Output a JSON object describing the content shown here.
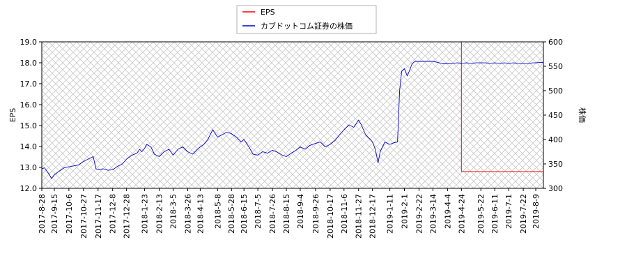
{
  "chart_data": {
    "type": "line",
    "legend": {
      "placement": "top-center",
      "entries": [
        "EPS",
        "カブドットコム証券の株価"
      ]
    },
    "grid": true,
    "x_ticks": [
      "2017-8-28",
      "2017-9-15",
      "2017-10-6",
      "2017-10-27",
      "2017-11-17",
      "2017-12-8",
      "2017-12-28",
      "2018-1-23",
      "2018-2-13",
      "2018-3-5",
      "2018-3-26",
      "2018-4-13",
      "2018-5-8",
      "2018-5-28",
      "2018-6-15",
      "2018-7-5",
      "2018-7-26",
      "2018-8-15",
      "2018-9-4",
      "2018-9-26",
      "2018-10-17",
      "2018-11-6",
      "2018-11-27",
      "2018-12-17",
      "2019-1-11",
      "2019-2-1",
      "2019-2-22",
      "2019-3-14",
      "2019-4-4",
      "2019-4-24",
      "2019-5-22",
      "2019-6-11",
      "2019-7-1",
      "2019-7-22",
      "2019-8-9"
    ],
    "x_range": [
      "2017-8-28",
      "2019-8-20"
    ],
    "y_left": {
      "label": "EPS",
      "range": [
        12.0,
        19.0
      ],
      "ticks": [
        "12.0",
        "13.0",
        "14.0",
        "15.0",
        "16.0",
        "17.0",
        "18.0",
        "19.0"
      ]
    },
    "y_right": {
      "label": "株価",
      "range": [
        300,
        600
      ],
      "ticks": [
        "300",
        "350",
        "400",
        "450",
        "500",
        "550",
        "600"
      ]
    },
    "series": [
      {
        "name": "EPS",
        "color": "#ff0000",
        "axis": "left",
        "points": [
          [
            "2018-4-24",
            19.0
          ],
          [
            "2019-4-24",
            19.0
          ],
          [
            "2019-4-24",
            12.8
          ],
          [
            "2019-8-20",
            12.8
          ]
        ]
      },
      {
        "name": "カブドットコム証券の株価",
        "color": "#0000cc",
        "axis": "right",
        "points": [
          [
            "2017-8-28",
            340
          ],
          [
            "2017-9-1",
            342
          ],
          [
            "2017-9-7",
            330
          ],
          [
            "2017-9-11",
            320
          ],
          [
            "2017-9-15",
            328
          ],
          [
            "2017-9-22",
            335
          ],
          [
            "2017-9-29",
            342
          ],
          [
            "2017-10-6",
            344
          ],
          [
            "2017-10-13",
            346
          ],
          [
            "2017-10-20",
            348
          ],
          [
            "2017-10-27",
            355
          ],
          [
            "2017-11-3",
            360
          ],
          [
            "2017-11-10",
            365
          ],
          [
            "2017-11-14",
            340
          ],
          [
            "2017-11-17",
            338
          ],
          [
            "2017-11-24",
            340
          ],
          [
            "2017-12-1",
            337
          ],
          [
            "2017-12-8",
            338
          ],
          [
            "2017-12-15",
            345
          ],
          [
            "2017-12-22",
            350
          ],
          [
            "2017-12-28",
            360
          ],
          [
            "2018-1-5",
            368
          ],
          [
            "2018-1-12",
            372
          ],
          [
            "2018-1-16",
            380
          ],
          [
            "2018-1-19",
            375
          ],
          [
            "2018-1-23",
            382
          ],
          [
            "2018-1-26",
            390
          ],
          [
            "2018-2-1",
            385
          ],
          [
            "2018-2-6",
            370
          ],
          [
            "2018-2-13",
            365
          ],
          [
            "2018-2-20",
            375
          ],
          [
            "2018-2-27",
            380
          ],
          [
            "2018-3-5",
            368
          ],
          [
            "2018-3-12",
            380
          ],
          [
            "2018-3-19",
            385
          ],
          [
            "2018-3-26",
            375
          ],
          [
            "2018-4-2",
            370
          ],
          [
            "2018-4-9",
            380
          ],
          [
            "2018-4-13",
            385
          ],
          [
            "2018-4-18",
            390
          ],
          [
            "2018-4-24",
            400
          ],
          [
            "2018-5-1",
            420
          ],
          [
            "2018-5-8",
            405
          ],
          [
            "2018-5-15",
            410
          ],
          [
            "2018-5-21",
            415
          ],
          [
            "2018-5-28",
            412
          ],
          [
            "2018-6-4",
            405
          ],
          [
            "2018-6-11",
            395
          ],
          [
            "2018-6-15",
            400
          ],
          [
            "2018-6-22",
            385
          ],
          [
            "2018-6-28",
            370
          ],
          [
            "2018-7-5",
            368
          ],
          [
            "2018-7-12",
            375
          ],
          [
            "2018-7-19",
            372
          ],
          [
            "2018-7-26",
            378
          ],
          [
            "2018-8-2",
            374
          ],
          [
            "2018-8-9",
            368
          ],
          [
            "2018-8-15",
            365
          ],
          [
            "2018-8-22",
            372
          ],
          [
            "2018-8-29",
            378
          ],
          [
            "2018-9-4",
            385
          ],
          [
            "2018-9-11",
            380
          ],
          [
            "2018-9-18",
            388
          ],
          [
            "2018-9-26",
            392
          ],
          [
            "2018-10-3",
            395
          ],
          [
            "2018-10-10",
            385
          ],
          [
            "2018-10-17",
            390
          ],
          [
            "2018-10-24",
            398
          ],
          [
            "2018-10-31",
            410
          ],
          [
            "2018-11-6",
            420
          ],
          [
            "2018-11-13",
            430
          ],
          [
            "2018-11-20",
            425
          ],
          [
            "2018-11-27",
            440
          ],
          [
            "2018-12-1",
            430
          ],
          [
            "2018-12-7",
            410
          ],
          [
            "2018-12-14",
            400
          ],
          [
            "2018-12-17",
            395
          ],
          [
            "2018-12-21",
            380
          ],
          [
            "2018-12-25",
            352
          ],
          [
            "2018-12-28",
            375
          ],
          [
            "2019-1-4",
            395
          ],
          [
            "2019-1-8",
            392
          ],
          [
            "2019-1-11",
            390
          ],
          [
            "2019-1-16",
            393
          ],
          [
            "2019-1-22",
            395
          ],
          [
            "2019-1-25",
            500
          ],
          [
            "2019-1-28",
            540
          ],
          [
            "2019-2-1",
            545
          ],
          [
            "2019-2-5",
            530
          ],
          [
            "2019-2-8",
            540
          ],
          [
            "2019-2-12",
            555
          ],
          [
            "2019-2-16",
            560
          ],
          [
            "2019-2-22",
            560
          ],
          [
            "2019-3-1",
            560
          ],
          [
            "2019-3-8",
            560
          ],
          [
            "2019-3-14",
            560
          ],
          [
            "2019-3-21",
            558
          ],
          [
            "2019-3-28",
            555
          ],
          [
            "2019-4-4",
            555
          ],
          [
            "2019-4-11",
            556
          ],
          [
            "2019-4-18",
            557
          ],
          [
            "2019-4-24",
            556
          ],
          [
            "2019-5-1",
            557
          ],
          [
            "2019-5-8",
            556
          ],
          [
            "2019-5-15",
            557
          ],
          [
            "2019-5-22",
            557
          ],
          [
            "2019-5-29",
            557
          ],
          [
            "2019-6-4",
            556
          ],
          [
            "2019-6-11",
            557
          ],
          [
            "2019-6-18",
            556
          ],
          [
            "2019-6-25",
            557
          ],
          [
            "2019-7-1",
            556
          ],
          [
            "2019-7-8",
            557
          ],
          [
            "2019-7-15",
            556
          ],
          [
            "2019-7-22",
            556
          ],
          [
            "2019-7-29",
            556
          ],
          [
            "2019-8-5",
            557
          ],
          [
            "2019-8-9",
            557
          ],
          [
            "2019-8-15",
            558
          ],
          [
            "2019-8-20",
            558
          ]
        ]
      }
    ]
  }
}
